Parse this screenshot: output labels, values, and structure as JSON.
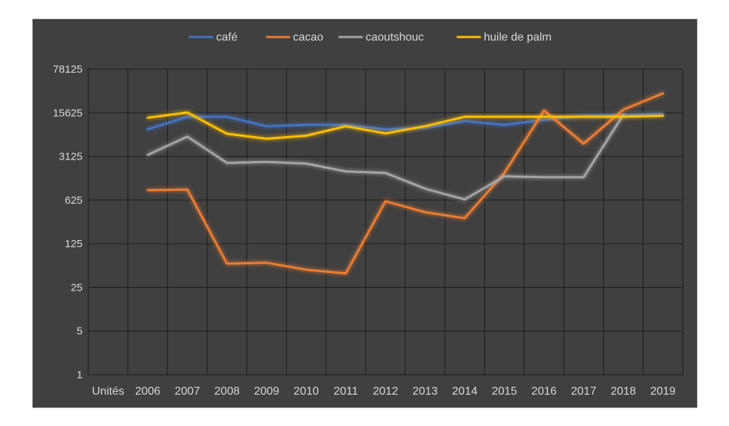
{
  "chart_data": {
    "type": "line",
    "y_scale": "log5",
    "ylim": [
      1,
      78125
    ],
    "y_ticks": [
      "1",
      "5",
      "25",
      "125",
      "625",
      "3125",
      "15625",
      "78125"
    ],
    "categories": [
      "Unités",
      "2006",
      "2007",
      "2008",
      "2009",
      "2010",
      "2011",
      "2012",
      "2013",
      "2014",
      "2015",
      "2016",
      "2017",
      "2018",
      "2019"
    ],
    "grid": true,
    "legend_position": "top",
    "series": [
      {
        "name": "café",
        "color": "#4472c4",
        "values": [
          null,
          8500,
          13500,
          13500,
          9500,
          10000,
          10000,
          8500,
          9000,
          11500,
          10000,
          12000,
          14000,
          14500,
          15000
        ]
      },
      {
        "name": "cacao",
        "color": "#ed7d31",
        "values": [
          null,
          900,
          920,
          60,
          62,
          48,
          42,
          600,
          400,
          320,
          1700,
          17000,
          5000,
          17500,
          32000
        ]
      },
      {
        "name": "caoutshouc",
        "color": "#a5a5a5",
        "values": [
          null,
          3300,
          6500,
          2450,
          2550,
          2400,
          1800,
          1700,
          950,
          640,
          1500,
          1450,
          1450,
          14500,
          null
        ]
      },
      {
        "name": "huile de palm",
        "color": "#ffc000",
        "values": [
          null,
          13000,
          15800,
          7200,
          6000,
          6700,
          9500,
          7300,
          9500,
          13500,
          13500,
          13500,
          13500,
          13500,
          14000
        ]
      }
    ]
  }
}
